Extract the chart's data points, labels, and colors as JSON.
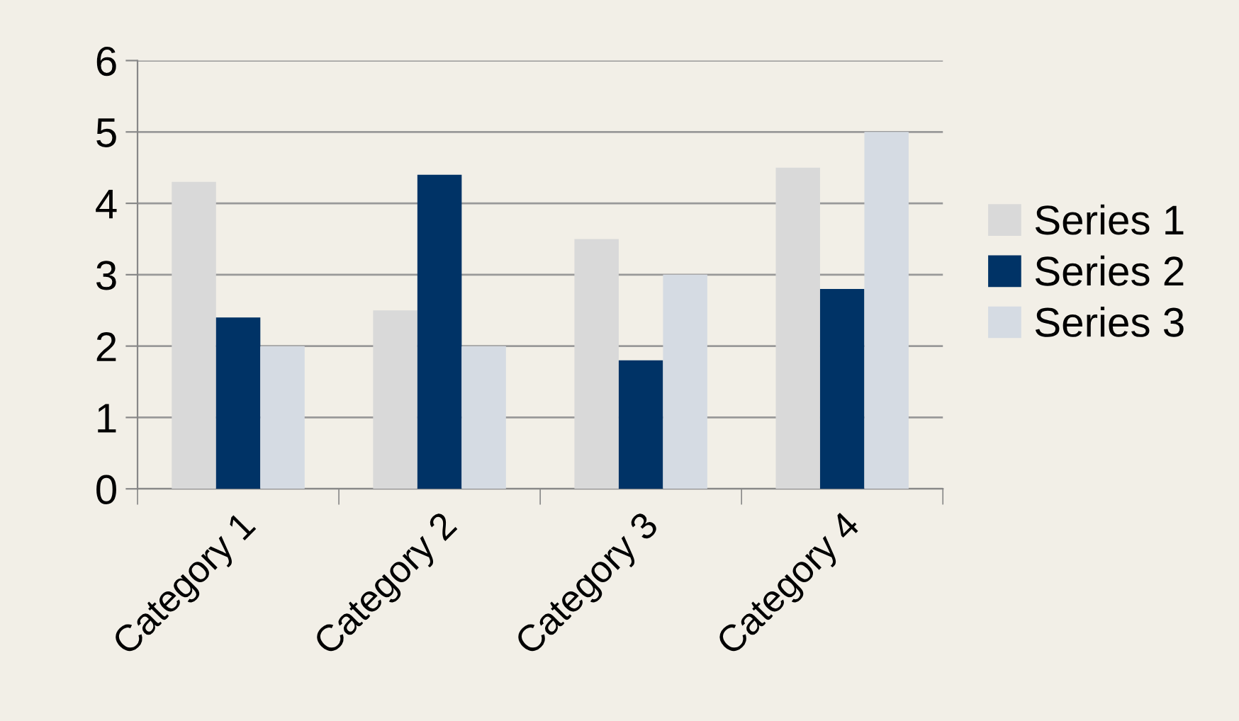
{
  "chart_data": {
    "type": "bar",
    "categories": [
      "Category 1",
      "Category 2",
      "Category 3",
      "Category 4"
    ],
    "series": [
      {
        "name": "Series 1",
        "color": "#d9d9d9",
        "values": [
          4.3,
          2.5,
          3.5,
          4.5
        ]
      },
      {
        "name": "Series 2",
        "color": "#003366",
        "values": [
          2.4,
          4.4,
          1.8,
          2.8
        ]
      },
      {
        "name": "Series 3",
        "color": "#d5dbe3",
        "values": [
          2,
          2,
          3,
          5
        ]
      }
    ],
    "ylim": [
      0,
      6
    ],
    "yticks": [
      0,
      1,
      2,
      3,
      4,
      5,
      6
    ],
    "grid": "y",
    "legend": "right"
  }
}
